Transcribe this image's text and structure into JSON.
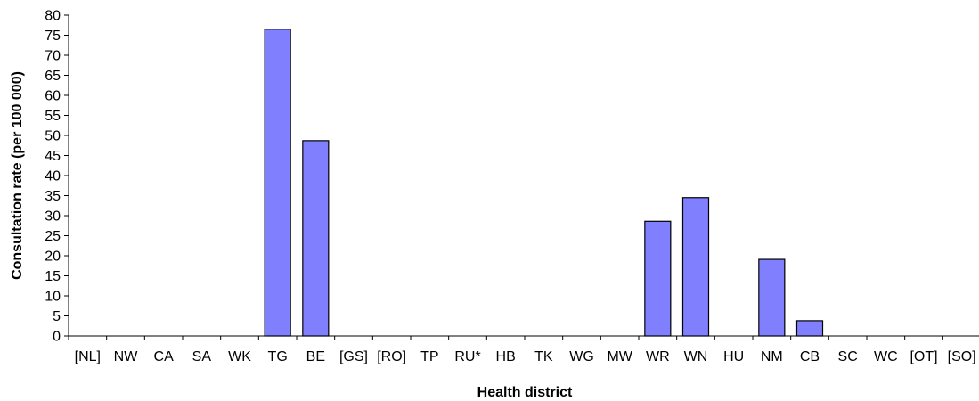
{
  "chart_data": {
    "type": "bar",
    "title": "",
    "xlabel": "Health district",
    "ylabel": "Consultation rate (per 100 000)",
    "ylim": [
      0,
      80
    ],
    "yticks": [
      0,
      5,
      10,
      15,
      20,
      25,
      30,
      35,
      40,
      45,
      50,
      55,
      60,
      65,
      70,
      75,
      80
    ],
    "grid": false,
    "legend": "none",
    "bar_color": "#8080ff",
    "bar_edge_color": "#000000",
    "categories": [
      "[NL]",
      "NW",
      "CA",
      "SA",
      "WK",
      "TG",
      "BE",
      "[GS]",
      "[RO]",
      "TP",
      "RU*",
      "HB",
      "TK",
      "WG",
      "MW",
      "WR",
      "WN",
      "HU",
      "NM",
      "CB",
      "SC",
      "WC",
      "[OT]",
      "[SO]"
    ],
    "values": [
      0,
      0,
      0,
      0,
      0,
      76.5,
      48.7,
      0,
      0,
      0,
      0,
      0,
      0,
      0,
      0,
      28.6,
      34.5,
      0,
      19.1,
      3.8,
      0,
      0,
      0,
      0
    ]
  }
}
